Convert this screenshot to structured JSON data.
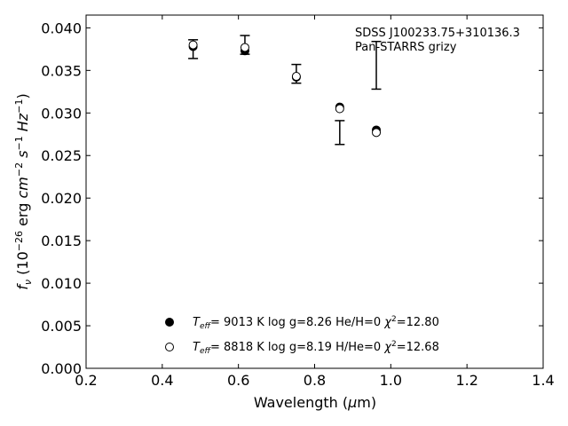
{
  "chart_data": {
    "type": "scatter",
    "annotation": [
      "SDSS J100233.75+310136.3",
      "Pan-STARRS grizy"
    ],
    "xlabel": {
      "prefix": "Wavelength (",
      "symbol": "μ",
      "suffix": "m)"
    },
    "ylabel": {
      "f": "f",
      "nu": "ν",
      "open": " (10",
      "exp1": "−26",
      "mid": " erg ",
      "cm": "cm",
      "exp2": "−2",
      "s": " s",
      "exp3": "−1",
      "hz": " Hz",
      "exp4": "−1",
      "close": ")"
    },
    "xlim": [
      0.2,
      1.4
    ],
    "ylim": [
      0.0,
      0.0415
    ],
    "x_ticks": [
      "0.2",
      "0.4",
      "0.6",
      "0.8",
      "1.0",
      "1.2",
      "1.4"
    ],
    "y_ticks": [
      "0.000",
      "0.005",
      "0.010",
      "0.015",
      "0.020",
      "0.025",
      "0.030",
      "0.035",
      "0.040"
    ],
    "grid": false,
    "legend_position": "lower-center",
    "observed": {
      "x": [
        0.481,
        0.617,
        0.752,
        0.866,
        0.962
      ],
      "y": [
        0.0375,
        0.038,
        0.0346,
        0.0277,
        0.0356
      ],
      "err": [
        0.0011,
        0.0011,
        0.0011,
        0.0014,
        0.0028
      ]
    },
    "series": [
      {
        "name": "Teff = 9013 K log g=8.26 He/H=0 χ2=12.80",
        "marker": "filled",
        "x": [
          0.481,
          0.617,
          0.752,
          0.866,
          0.962
        ],
        "y": [
          0.0378,
          0.0373,
          0.0342,
          0.0307,
          0.028
        ]
      },
      {
        "name": "Teff = 8818 K log g=8.19 H/He=0 χ2=12.68",
        "marker": "open",
        "x": [
          0.481,
          0.617,
          0.752,
          0.866,
          0.962
        ],
        "y": [
          0.038,
          0.0377,
          0.0343,
          0.0305,
          0.0277
        ]
      }
    ],
    "legend": [
      {
        "T": "T",
        "sub": "eff",
        "eq": "=  9013 K  log g=8.26  He/H=0  ",
        "chi": "χ",
        "sup": "2",
        "val": "=12.80"
      },
      {
        "T": "T",
        "sub": "eff",
        "eq": "=  8818 K  log g=8.19  H/He=0  ",
        "chi": "χ",
        "sup": "2",
        "val": "=12.68"
      }
    ]
  }
}
